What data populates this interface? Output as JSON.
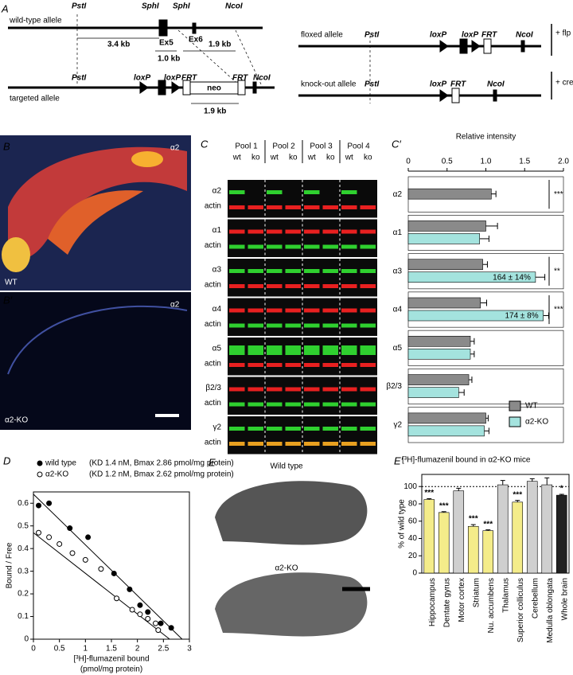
{
  "panel_labels": [
    "A",
    "B",
    "B′",
    "C",
    "C′",
    "D",
    "E",
    "E′"
  ],
  "diagram": {
    "labels": [
      "PstI",
      "SphI",
      "SphI",
      "NcoI",
      "wild-type allele",
      "3.4 kb",
      "Ex5",
      "Ex6",
      "1.0 kb",
      "1.9 kb",
      "PstI",
      "loxP",
      "loxP",
      "FRT",
      "FRT",
      "NcoI",
      "targeted allele",
      "neo",
      "1.9 kb",
      "PstI",
      "loxP",
      "loxP",
      "FRT",
      "NcoI",
      "floxed allele",
      "+ flp",
      "PstI",
      "loxP",
      "FRT",
      "NcoI",
      "knock-out allele",
      "+ cre"
    ]
  },
  "images": {
    "b_label": "α2",
    "b_genotype": "WT",
    "b2_label": "α2",
    "b2_genotype": "α2-KO"
  },
  "blot": {
    "pools": [
      "Pool 1",
      "Pool 2",
      "Pool 3",
      "Pool 4"
    ],
    "genotypes": [
      "wt",
      "ko"
    ],
    "rows": [
      {
        "target": "α2",
        "control": "actin"
      },
      {
        "target": "α1",
        "control": "actin"
      },
      {
        "target": "α3",
        "control": "actin"
      },
      {
        "target": "α4",
        "control": "actin"
      },
      {
        "target": "α5",
        "control": "actin"
      },
      {
        "target": "β2/3",
        "control": "actin"
      },
      {
        "target": "γ2",
        "control": "actin"
      }
    ]
  },
  "autoradiographs": {
    "top": "Wild type",
    "bottom": "α2-KO"
  },
  "chart_data": [
    {
      "type": "hbar",
      "title": "Relative intensity",
      "categories": [
        "α2",
        "α1",
        "α3",
        "α4",
        "α5",
        "β2/3",
        "γ2"
      ],
      "series": [
        {
          "name": "WT",
          "color": "#8a8a8a",
          "values": [
            1.07,
            1.0,
            0.96,
            0.93,
            0.8,
            0.78,
            1.0
          ],
          "errors": [
            0.06,
            0.15,
            0.06,
            0.08,
            0.05,
            0.04,
            0.03
          ]
        },
        {
          "name": "α2-KO",
          "color": "#a4e3de",
          "values": [
            null,
            0.92,
            1.64,
            1.74,
            0.8,
            0.65,
            0.98
          ],
          "errors": [
            null,
            0.12,
            0.12,
            0.07,
            0.05,
            0.07,
            0.06
          ],
          "value_labels": [
            null,
            null,
            "164 ± 14%",
            "174 ± 8%",
            null,
            null,
            null
          ]
        }
      ],
      "significance": [
        "***",
        null,
        "**",
        "***",
        null,
        null,
        null
      ],
      "xlim": [
        0,
        2
      ],
      "xticks": [
        0,
        0.5,
        {
          "value": 1,
          "label": "1.0"
        },
        1.5,
        {
          "value": 2,
          "label": "2.0"
        }
      ]
    },
    {
      "type": "scatter",
      "x_label": "[³H]-flumazenil bound",
      "x_label_2": "(pmol/mg protein)",
      "y_label": "Bound / Free",
      "series": [
        {
          "name": "wild type",
          "legend_detail": "(KD 1.4 nM, Bmax 2.86 pmol/mg protein)",
          "marker": "filled",
          "x": [
            0.1,
            0.3,
            0.7,
            1.05,
            1.55,
            1.85,
            2.05,
            2.2,
            2.45,
            2.65
          ],
          "y": [
            0.59,
            0.6,
            0.49,
            0.45,
            0.29,
            0.22,
            0.15,
            0.12,
            0.07,
            0.05
          ],
          "fit": {
            "x": [
              0,
              2.86
            ],
            "y": [
              0.64,
              0
            ]
          }
        },
        {
          "name": "α2-KO",
          "legend_detail": "(KD 1.2 nM, Bmax 2.62 pmol/mg protein)",
          "marker": "open",
          "x": [
            0.1,
            0.3,
            0.5,
            0.75,
            1.0,
            1.3,
            1.6,
            1.9,
            2.05,
            2.2,
            2.35,
            2.4
          ],
          "y": [
            0.47,
            0.45,
            0.42,
            0.38,
            0.35,
            0.31,
            0.18,
            0.13,
            0.11,
            0.09,
            0.07,
            0.04
          ],
          "fit": {
            "x": [
              0,
              2.62
            ],
            "y": [
              0.47,
              0
            ]
          }
        }
      ],
      "xlim": [
        0,
        3
      ],
      "xticks": [
        0,
        0.5,
        1,
        1.5,
        2,
        2.5,
        3
      ],
      "ylim": [
        0,
        0.65
      ],
      "yticks": [
        0,
        0.1,
        0.2,
        0.3,
        0.4,
        0.5,
        0.6
      ]
    },
    {
      "type": "bar",
      "title": "[³H]-flumazenil bound in α2-KO mice",
      "y_label": "% of wild type",
      "categories": [
        "Hippocampus",
        "Dentate gyrus",
        "Motor cortex",
        "Striatum",
        "Nu. accumbens",
        "Thalamus",
        "Superior colliculus",
        "Cerebellum",
        "Medulla oblongata",
        "Whole brain"
      ],
      "values": [
        85,
        70,
        95,
        54,
        49,
        102,
        82,
        106,
        102,
        90
      ],
      "errors": [
        1,
        1,
        3,
        2,
        1,
        5,
        2,
        3,
        8,
        1
      ],
      "colors": [
        "#f4ec8a",
        "#f4ec8a",
        "#cfcfcf",
        "#f4ec8a",
        "#f4ec8a",
        "#cfcfcf",
        "#f4ec8a",
        "#cfcfcf",
        "#cfcfcf",
        "#222222"
      ],
      "significance": [
        "***",
        "***",
        null,
        "***",
        "***",
        null,
        "***",
        null,
        null,
        "*"
      ],
      "reference_line": 100,
      "ylim": [
        0,
        114
      ],
      "yticks": [
        0,
        20,
        40,
        60,
        80,
        100
      ]
    }
  ]
}
